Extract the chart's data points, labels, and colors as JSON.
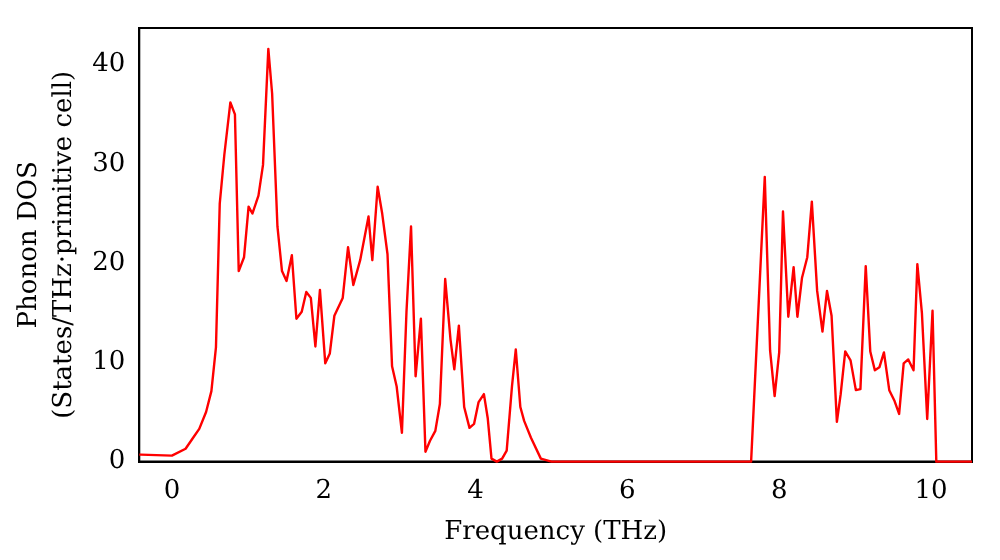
{
  "chart_data": {
    "type": "line",
    "xlabel": "Frequency (THz)",
    "ylabel": "Phonon DOS\n(States/THz·primitive cell)",
    "x": [
      -0.43,
      -0.41,
      0.0,
      0.18,
      0.27,
      0.36,
      0.45,
      0.52,
      0.58,
      0.63,
      0.69,
      0.77,
      0.83,
      0.88,
      0.95,
      1.01,
      1.06,
      1.14,
      1.2,
      1.27,
      1.32,
      1.39,
      1.45,
      1.51,
      1.58,
      1.64,
      1.71,
      1.77,
      1.83,
      1.89,
      1.95,
      2.02,
      2.08,
      2.14,
      2.25,
      2.32,
      2.39,
      2.48,
      2.59,
      2.64,
      2.71,
      2.77,
      2.84,
      2.9,
      2.96,
      3.03,
      3.09,
      3.15,
      3.21,
      3.28,
      3.34,
      3.4,
      3.47,
      3.53,
      3.6,
      3.67,
      3.72,
      3.78,
      3.85,
      3.92,
      3.98,
      4.04,
      4.11,
      4.16,
      4.21,
      4.28,
      4.35,
      4.41,
      4.48,
      4.53,
      4.59,
      4.64,
      4.73,
      4.86,
      5.0,
      7.63,
      7.81,
      7.88,
      7.94,
      8.0,
      8.05,
      8.12,
      8.19,
      8.24,
      8.3,
      8.37,
      8.43,
      8.5,
      8.57,
      8.63,
      8.69,
      8.76,
      8.81,
      8.87,
      8.94,
      9.01,
      9.07,
      9.14,
      9.2,
      9.26,
      9.32,
      9.38,
      9.45,
      9.52,
      9.58,
      9.64,
      9.7,
      9.77,
      9.82,
      9.88,
      9.95,
      10.02,
      10.07,
      10.54
    ],
    "series": [
      {
        "color": "#ff0000",
        "values": [
          0.7,
          0.7,
          0.6,
          1.3,
          2.3,
          3.3,
          5,
          7.1,
          11.5,
          26,
          30.9,
          36.2,
          35,
          19.2,
          20.6,
          25.7,
          25,
          26.8,
          29.9,
          41.6,
          37.1,
          23.7,
          19.2,
          18.2,
          20.8,
          14.4,
          15.1,
          17.1,
          16.5,
          11.6,
          17.3,
          9.9,
          10.9,
          14.7,
          16.5,
          21.6,
          17.8,
          20.3,
          24.7,
          20.3,
          27.7,
          25,
          20.9,
          9.6,
          7.6,
          2.9,
          15.1,
          23.7,
          8.6,
          14.4,
          1,
          2.1,
          3.1,
          5.8,
          18.4,
          12.3,
          9.3,
          13.7,
          5.5,
          3.4,
          3.8,
          6,
          6.8,
          4.4,
          0.3,
          0,
          0.3,
          1.1,
          7.6,
          11.3,
          5.5,
          4.1,
          2.4,
          0.3,
          0,
          0,
          28.7,
          11.2,
          6.6,
          11,
          25.2,
          14.6,
          19.6,
          14.6,
          18.5,
          20.6,
          26.2,
          17.2,
          13.1,
          17.2,
          14.7,
          4,
          6.8,
          11.1,
          10.2,
          7.2,
          7.3,
          19.7,
          11.1,
          9.2,
          9.5,
          11,
          7.2,
          6.1,
          4.8,
          9.9,
          10.3,
          9.2,
          19.9,
          15,
          4.3,
          15.2,
          0,
          0
        ]
      }
    ],
    "xlim": [
      -0.43,
      10.54
    ],
    "xticks": [
      0,
      2,
      4,
      6,
      8,
      10
    ],
    "ylim": [
      0,
      43.7
    ],
    "yticks": [
      0,
      10,
      20,
      30,
      40
    ],
    "grid": false,
    "legend": false,
    "marker": "none",
    "line_style": "solid"
  }
}
